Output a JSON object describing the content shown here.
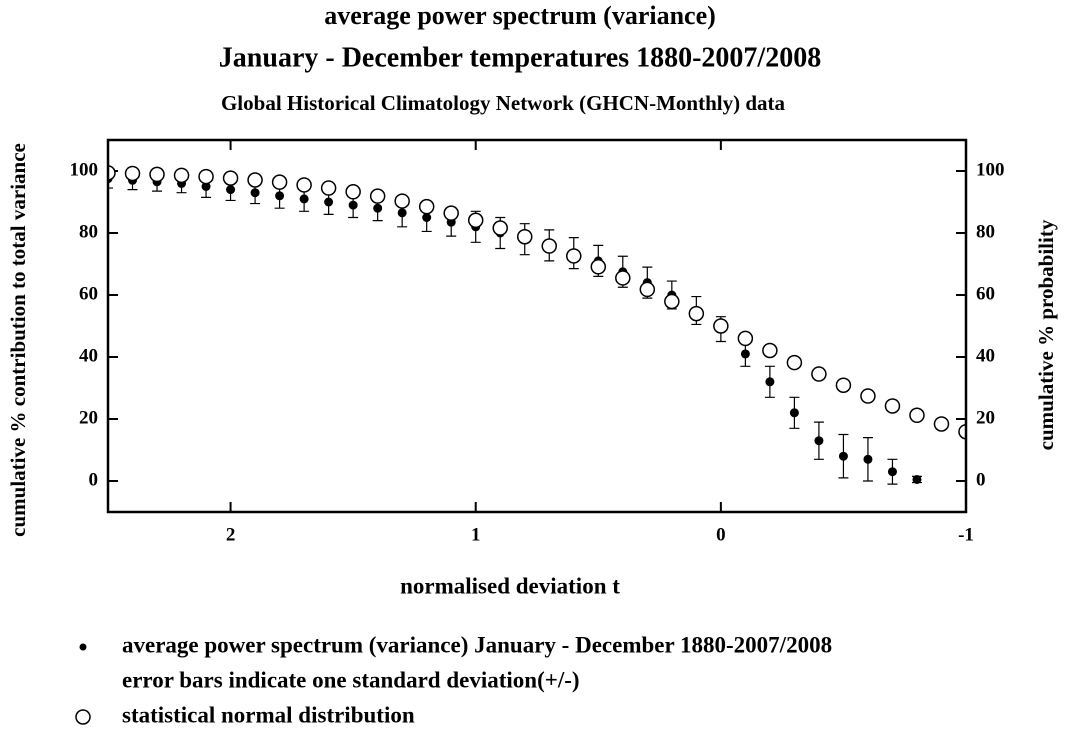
{
  "chart_data": {
    "type": "scatter",
    "title": "average power spectrum (variance)",
    "subtitle": "January - December temperatures 1880-2007/2008",
    "source": "Global Historical Climatology Network (GHCN-Monthly) data",
    "xlabel": "normalised deviation t",
    "ylabel": "cumulative % contribution to total variance",
    "y2label": "cumulative % probability",
    "xlim": [
      2.5,
      -1
    ],
    "xticks": [
      2,
      1,
      0,
      -1
    ],
    "ylim": [
      -10,
      110
    ],
    "yticks": [
      0,
      20,
      40,
      60,
      80,
      100
    ],
    "y2lim": [
      -10,
      110
    ],
    "y2ticks": [
      0,
      20,
      40,
      60,
      80,
      100
    ],
    "annotation": "error bars indicate one standard deviation(+/-)",
    "series": [
      {
        "name": "average power spectrum (variance) January - December 1880-2007/2008",
        "color": "#000000",
        "marker": "dot",
        "x": [
          2.5,
          2.4,
          2.3,
          2.2,
          2.1,
          2.0,
          1.9,
          1.8,
          1.7,
          1.6,
          1.5,
          1.4,
          1.3,
          1.2,
          1.1,
          1.0,
          0.9,
          0.8,
          0.7,
          0.6,
          0.5,
          0.4,
          0.3,
          0.2,
          0.1,
          0,
          -0.1,
          -0.2,
          -0.3,
          -0.4,
          -0.5,
          -0.6,
          -0.7,
          -0.8
        ],
        "values": [
          97.5,
          97,
          96.5,
          96,
          95,
          94,
          93,
          92,
          91,
          90,
          89,
          88,
          86.5,
          85,
          83.5,
          82,
          80,
          78,
          76,
          73.5,
          71,
          67.5,
          64,
          60,
          55,
          49,
          41,
          32,
          22,
          13,
          8,
          7,
          3,
          0.5
        ],
        "errors": [
          3,
          3,
          3,
          3,
          3.5,
          3.5,
          3.5,
          4,
          4,
          4,
          4,
          4,
          4.5,
          4.5,
          4.5,
          5,
          5,
          5,
          5,
          5,
          5,
          5,
          5,
          4.5,
          4.5,
          4,
          4,
          5,
          5,
          6,
          7,
          7,
          4,
          1
        ]
      },
      {
        "name": "statistical normal distribution",
        "color": "#000000",
        "marker": "circle",
        "x": [
          2.5,
          2.4,
          2.3,
          2.2,
          2.1,
          2.0,
          1.9,
          1.8,
          1.7,
          1.6,
          1.5,
          1.4,
          1.3,
          1.2,
          1.1,
          1.0,
          0.9,
          0.8,
          0.7,
          0.6,
          0.5,
          0.4,
          0.3,
          0.2,
          0.1,
          0,
          -0.1,
          -0.2,
          -0.3,
          -0.4,
          -0.5,
          -0.6,
          -0.7,
          -0.8,
          -0.9,
          -1.0
        ],
        "values": [
          99.4,
          99.2,
          98.9,
          98.6,
          98.2,
          97.7,
          97.1,
          96.4,
          95.5,
          94.5,
          93.3,
          91.9,
          90.3,
          88.5,
          86.4,
          84.1,
          81.6,
          78.8,
          75.8,
          72.6,
          69.1,
          65.5,
          61.8,
          57.9,
          54.0,
          50.0,
          46.0,
          42.1,
          38.2,
          34.5,
          30.9,
          27.4,
          24.2,
          21.2,
          18.4,
          15.9
        ]
      }
    ]
  }
}
